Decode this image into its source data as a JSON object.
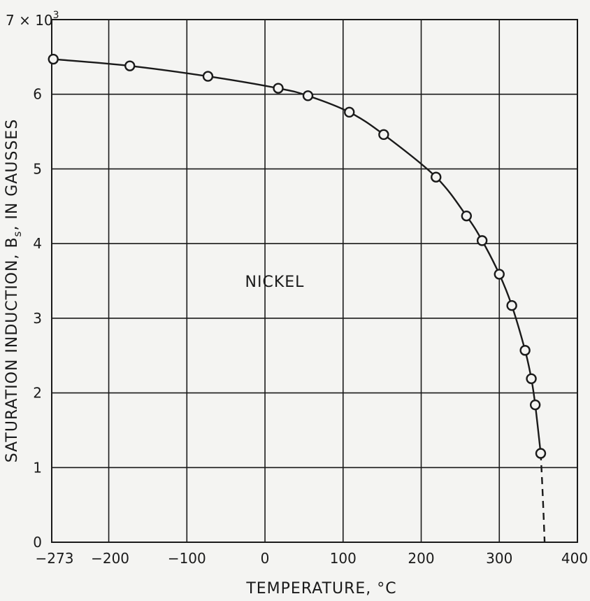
{
  "chart_data": {
    "type": "line",
    "title": "",
    "xlabel": "TEMPERATURE, °C",
    "ylabel": "SATURATION INDUCTION, B",
    "ylabel_subscript": "s",
    "ylabel_suffix": ", IN GAUSSES",
    "y_multiplier_prefix": "7 × 10",
    "y_multiplier_exponent": "3",
    "annotation": "NICKEL",
    "xlim": [
      -273,
      400
    ],
    "ylim": [
      0,
      7
    ],
    "x_gridlines": [
      -273,
      -200,
      -100,
      0,
      100,
      200,
      300,
      400
    ],
    "y_gridlines": [
      0,
      1,
      2,
      3,
      4,
      5,
      6,
      7
    ],
    "x_tick_labels": [
      {
        "value": -273,
        "label": "−273"
      },
      {
        "value": -200,
        "label": "−200"
      },
      {
        "value": -100,
        "label": "−100"
      },
      {
        "value": 0,
        "label": "0"
      },
      {
        "value": 100,
        "label": "100"
      },
      {
        "value": 200,
        "label": "200"
      },
      {
        "value": 300,
        "label": "300"
      },
      {
        "value": 400,
        "label": "400"
      }
    ],
    "y_tick_labels": [
      {
        "value": 0,
        "label": "0"
      },
      {
        "value": 1,
        "label": "1"
      },
      {
        "value": 2,
        "label": "2"
      },
      {
        "value": 3,
        "label": "3"
      },
      {
        "value": 4,
        "label": "4"
      },
      {
        "value": 5,
        "label": "5"
      },
      {
        "value": 6,
        "label": "6"
      }
    ],
    "grid": true,
    "series": [
      {
        "markers": "open-circle",
        "points": [
          {
            "x": -271,
            "y": 6.47
          },
          {
            "x": -173,
            "y": 6.38
          },
          {
            "x": -73,
            "y": 6.24
          },
          {
            "x": 17,
            "y": 6.08
          },
          {
            "x": 55,
            "y": 5.98
          },
          {
            "x": 108,
            "y": 5.76
          },
          {
            "x": 152,
            "y": 5.46
          },
          {
            "x": 219,
            "y": 4.89
          },
          {
            "x": 258,
            "y": 4.37
          },
          {
            "x": 278,
            "y": 4.04
          },
          {
            "x": 300,
            "y": 3.59
          },
          {
            "x": 316,
            "y": 3.17
          },
          {
            "x": 333,
            "y": 2.57
          },
          {
            "x": 341,
            "y": 2.19
          },
          {
            "x": 346,
            "y": 1.84
          },
          {
            "x": 353,
            "y": 1.19
          }
        ],
        "extrapolation": [
          {
            "x": 353,
            "y": 1.19
          },
          {
            "x": 358,
            "y": 0
          }
        ]
      }
    ]
  }
}
